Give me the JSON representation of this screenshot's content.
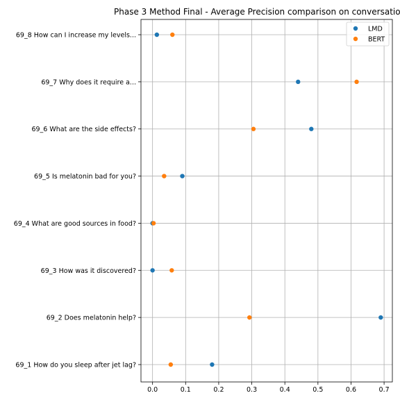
{
  "chart_data": {
    "type": "scatter",
    "title": "Phase 3 Method Final - Average Precision comparison on conversatio",
    "xlabel": "",
    "ylabel": "",
    "xlim": [
      -0.035,
      0.725
    ],
    "xticks": [
      "0.0",
      "0.1",
      "0.2",
      "0.3",
      "0.4",
      "0.5",
      "0.6",
      "0.7"
    ],
    "categories": [
      "69_1 How do you sleep after jet lag?",
      "69_2 Does melatonin help?",
      "69_3 How was it discovered?",
      "69_4 What are good sources in food?",
      "69_5 Is melatonin bad for you?",
      "69_6 What are the side effects?",
      "69_7 Why does it require a...",
      "69_8 How can I increase my levels..."
    ],
    "series": [
      {
        "name": "LMD",
        "color": "#1f77b4",
        "values": [
          0.18,
          0.69,
          0.0,
          0.0,
          0.09,
          0.48,
          0.44,
          0.013
        ]
      },
      {
        "name": "BERT",
        "color": "#ff7f0e",
        "values": [
          0.055,
          0.293,
          0.058,
          0.003,
          0.035,
          0.305,
          0.617,
          0.06
        ]
      }
    ],
    "grid": true,
    "legend_position": "top-right"
  }
}
